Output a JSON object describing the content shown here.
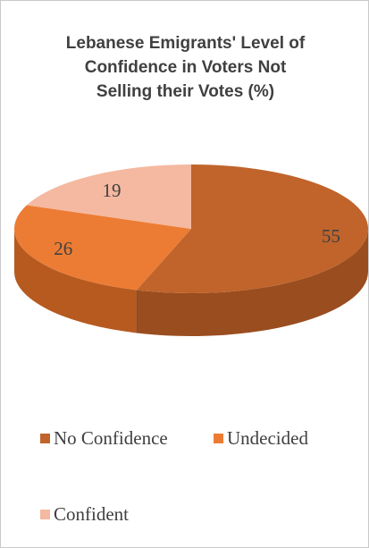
{
  "chart_data": {
    "type": "pie",
    "title_lines": [
      "Lebanese Emigrants' Level of",
      "Confidence in Voters Not",
      "Selling their Votes (%)"
    ],
    "categories": [
      "No Confidence",
      "Undecided",
      "Confident"
    ],
    "values": [
      55,
      26,
      19
    ],
    "data_labels": [
      "55",
      "26",
      "19"
    ],
    "colors": [
      "#c0642b",
      "#ec7c34",
      "#f4b9a0"
    ],
    "side_colors": [
      "#9a4d1f",
      "#b65a20",
      "#c9907a"
    ],
    "legend_placement": "bottom",
    "style": "3d"
  }
}
